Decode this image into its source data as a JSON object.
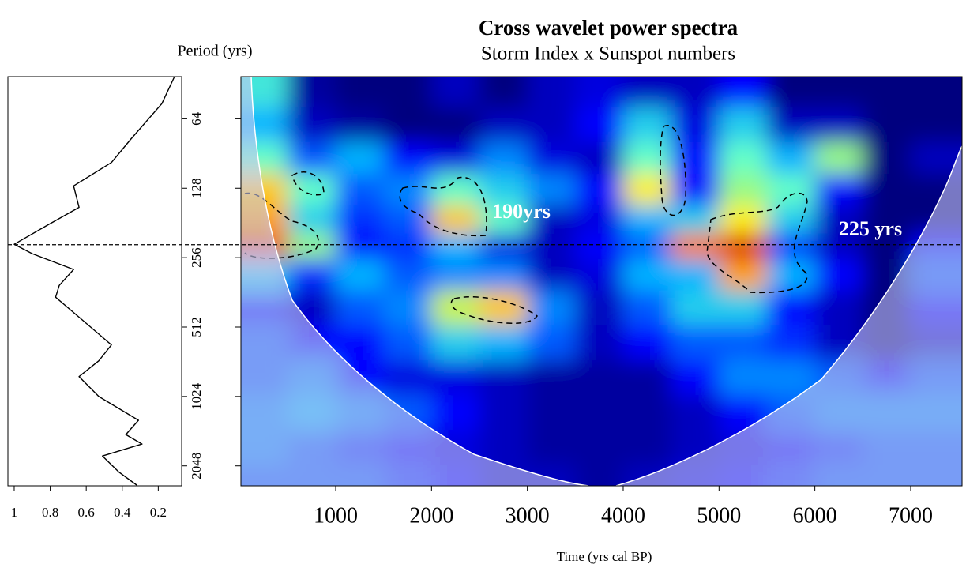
{
  "chart_data": [
    {
      "type": "line",
      "y_label": "Period (yrs)",
      "color": "#000000",
      "y": [
        42,
        55,
        78,
        99,
        125,
        155,
        186,
        224,
        246,
        288,
        338,
        380,
        464,
        612,
        717,
        840,
        1024,
        1299,
        1498,
        1647,
        1855,
        2174,
        2480
      ],
      "values": [
        0.11,
        0.18,
        0.35,
        0.46,
        0.67,
        0.64,
        0.82,
        1.0,
        0.9,
        0.67,
        0.75,
        0.77,
        0.64,
        0.46,
        0.53,
        0.64,
        0.53,
        0.31,
        0.38,
        0.29,
        0.51,
        0.42,
        0.32
      ],
      "xlim": [
        1.035,
        0.07
      ],
      "xticks": [
        1,
        0.8,
        0.6,
        0.4,
        0.2
      ],
      "ylim": [
        42,
        2500
      ],
      "ylog": true
    },
    {
      "type": "heatmap",
      "title": "Cross wavelet power spectra",
      "subtitle": "Storm Index x Sunspot numbers",
      "x_label": "Time (yrs cal BP)",
      "annotations": [
        "190yrs",
        "225 yrs"
      ],
      "reference_period": 225,
      "x": [
        250,
        750,
        1250,
        1750,
        2250,
        2750,
        3250,
        3750,
        4250,
        4750,
        5250,
        5750,
        6250,
        6750,
        7250
      ],
      "y": [
        48,
        68,
        96,
        128,
        180,
        225,
        300,
        420,
        600,
        850,
        1200,
        1700,
        2400
      ],
      "z": [
        [
          0.5,
          0.05,
          0.0,
          0.0,
          0.1,
          0.0,
          0.1,
          0.15,
          0.1,
          0.1,
          0.2,
          0.0,
          0.0,
          0.0,
          0.0
        ],
        [
          0.4,
          0.1,
          0.05,
          0.0,
          0.0,
          0.1,
          0.1,
          0.2,
          0.45,
          0.15,
          0.45,
          0.1,
          0.1,
          0.0,
          0.0
        ],
        [
          0.55,
          0.3,
          0.4,
          0.2,
          0.15,
          0.35,
          0.15,
          0.1,
          0.55,
          0.2,
          0.55,
          0.4,
          0.6,
          0.0,
          0.1
        ],
        [
          0.75,
          0.55,
          0.3,
          0.35,
          0.55,
          0.45,
          0.35,
          0.2,
          0.7,
          0.2,
          0.6,
          0.55,
          0.2,
          0.0,
          0.0
        ],
        [
          0.8,
          0.45,
          0.25,
          0.3,
          0.75,
          0.55,
          0.1,
          0.15,
          0.4,
          0.45,
          0.7,
          0.45,
          0.1,
          0.0,
          0.0
        ],
        [
          0.9,
          0.6,
          0.2,
          0.25,
          0.4,
          0.15,
          0.1,
          0.2,
          0.3,
          0.85,
          0.95,
          0.25,
          0.1,
          0.0,
          0.2
        ],
        [
          0.45,
          0.25,
          0.4,
          0.3,
          0.35,
          0.35,
          0.1,
          0.15,
          0.4,
          0.4,
          0.8,
          0.4,
          0.2,
          0.0,
          0.3
        ],
        [
          0.2,
          0.1,
          0.3,
          0.35,
          0.65,
          0.75,
          0.35,
          0.1,
          0.3,
          0.45,
          0.45,
          0.2,
          0.1,
          0.0,
          0.2
        ],
        [
          0.3,
          0.2,
          0.2,
          0.3,
          0.45,
          0.4,
          0.3,
          0.1,
          0.2,
          0.3,
          0.3,
          0.25,
          0.1,
          0.0,
          0.1
        ],
        [
          0.3,
          0.35,
          0.2,
          0.15,
          0.15,
          0.1,
          0.05,
          0.05,
          0.05,
          0.2,
          0.35,
          0.35,
          0.3,
          0.2,
          0.3
        ],
        [
          0.35,
          0.4,
          0.35,
          0.3,
          0.2,
          0.1,
          0.05,
          0.05,
          0.05,
          0.1,
          0.2,
          0.3,
          0.35,
          0.35,
          0.35
        ],
        [
          0.35,
          0.3,
          0.25,
          0.2,
          0.15,
          0.1,
          0.05,
          0.05,
          0.05,
          0.1,
          0.15,
          0.2,
          0.25,
          0.3,
          0.3
        ],
        [
          0.3,
          0.3,
          0.3,
          0.25,
          0.2,
          0.1,
          0.1,
          0.05,
          0.1,
          0.15,
          0.2,
          0.25,
          0.3,
          0.3,
          0.3
        ]
      ],
      "xlim": [
        11,
        7536
      ],
      "xticks": [
        1000,
        2000,
        3000,
        4000,
        5000,
        6000,
        7000
      ],
      "ylim": [
        42,
        2500
      ],
      "ylog": true,
      "yticks": [
        64,
        128,
        256,
        512,
        1024,
        2048
      ]
    }
  ]
}
